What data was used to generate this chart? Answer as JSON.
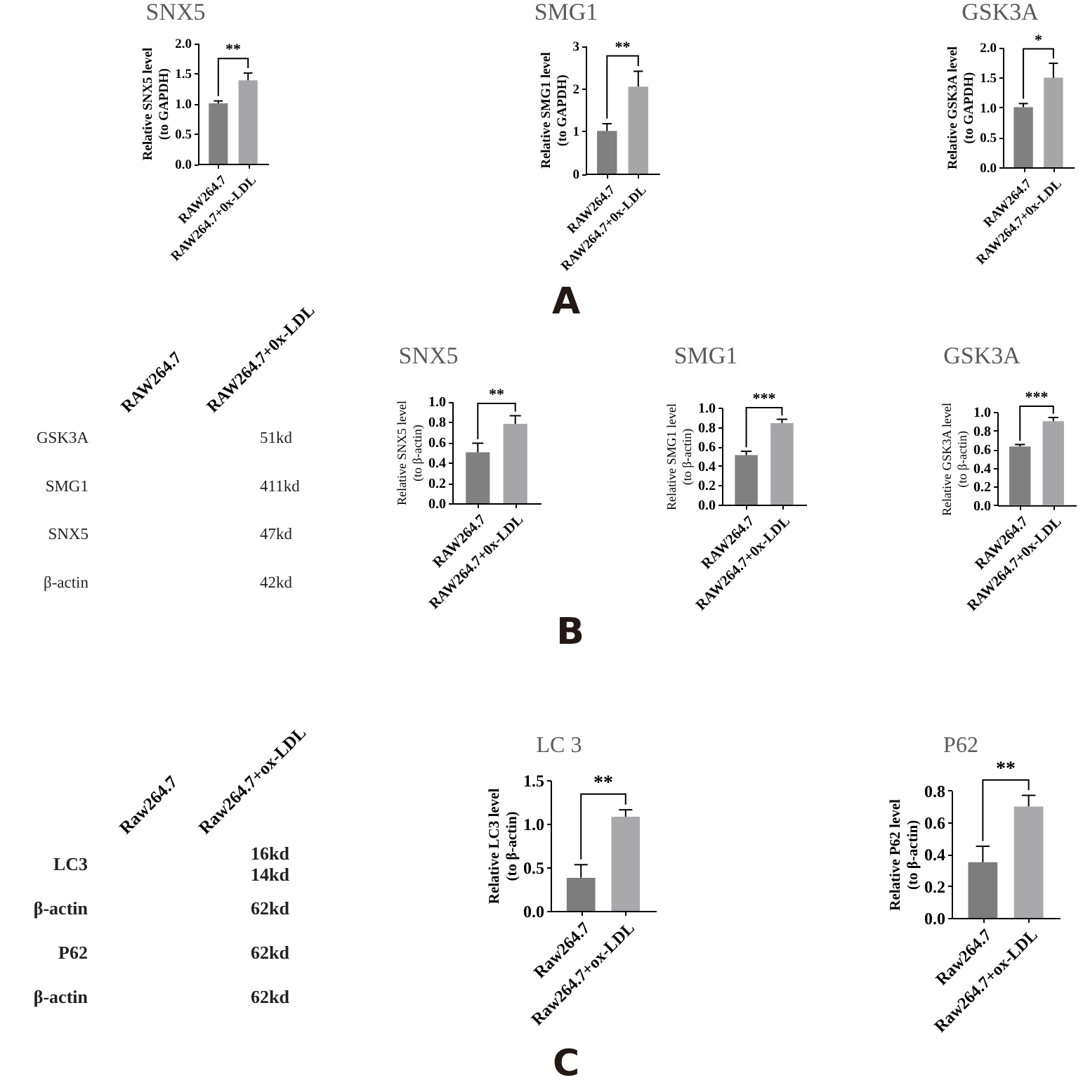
{
  "chart_data": [
    {
      "type": "bar",
      "title": "SNX5",
      "ylabel": "Relative SNX5 level\n(to GAPDH)",
      "categories": [
        "RAW264.7",
        "RAW264.7+0x-LDL"
      ],
      "values": [
        1.0,
        1.38
      ],
      "errors": [
        [
          1.0,
          1.04
        ],
        [
          1.38,
          1.5
        ]
      ],
      "colors": [
        "#808080",
        "#a6a6a9"
      ],
      "ylim": [
        0,
        2
      ],
      "yticks": [
        {
          "value": 0,
          "label": "0.0"
        },
        0.5,
        {
          "value": 1,
          "label": "1.0"
        },
        1.5,
        {
          "value": 2,
          "label": "2.0"
        }
      ],
      "annotations": [
        "**"
      ]
    },
    {
      "type": "bar",
      "title": "SMG1",
      "ylabel": "Relative SMG1 level\n(to GAPDH)",
      "categories": [
        "RAW264.7",
        "RAW264.7+0x-LDL"
      ],
      "values": [
        1.0,
        2.04
      ],
      "errors": [
        [
          1.0,
          1.17
        ],
        [
          2.04,
          2.4
        ]
      ],
      "colors": [
        "#808080",
        "#a6a6a9"
      ],
      "ylim": [
        0,
        3
      ],
      "yticks": [
        0,
        1,
        2,
        3
      ],
      "annotations": [
        "**"
      ]
    },
    {
      "type": "bar",
      "title": "GSK3A",
      "ylabel": "Relative GSK3A level\n(to GAPDH)",
      "categories": [
        "RAW264.7",
        "RAW264.7+0x-LDL"
      ],
      "values": [
        1.0,
        1.49
      ],
      "errors": [
        [
          1.0,
          1.06
        ],
        [
          1.49,
          1.73
        ]
      ],
      "colors": [
        "#808080",
        "#a6a6a9"
      ],
      "ylim": [
        0,
        2
      ],
      "yticks": [
        {
          "value": 0,
          "label": "0.0"
        },
        0.5,
        {
          "value": 1,
          "label": "1.0"
        },
        1.5,
        {
          "value": 2,
          "label": "2.0"
        }
      ],
      "annotations": [
        "*"
      ]
    },
    {
      "type": "other",
      "annotations": [
        "A"
      ]
    },
    {
      "type": "other",
      "categories": [
        "RAW264.7",
        "RAW264.7+0x-LDL"
      ],
      "y_categories": [
        "GSK3A",
        "SMG1",
        "SNX5",
        "β-actin"
      ],
      "y2_categories": [
        "51kd",
        "411kd",
        "47kd",
        "42kd"
      ]
    },
    {
      "type": "bar",
      "title": "SNX5",
      "ylabel": "Relative SNX5 level\n(to β-actin)",
      "categories": [
        "RAW264.7",
        "RAW264.7+0x-LDL"
      ],
      "values": [
        0.5,
        0.78
      ],
      "errors": [
        [
          0.5,
          0.59
        ],
        [
          0.78,
          0.86
        ]
      ],
      "colors": [
        "#808080",
        "#a6a6a9"
      ],
      "ylim": [
        0,
        1
      ],
      "yticks": [
        {
          "value": 0,
          "label": "0.0"
        },
        0.2,
        0.4,
        0.6,
        0.8,
        {
          "value": 1,
          "label": "1.0"
        }
      ],
      "annotations": [
        "**"
      ]
    },
    {
      "type": "bar",
      "title": "SMG1",
      "ylabel": "Relative SMG1 level\n(to β-actin)",
      "categories": [
        "RAW264.7",
        "RAW264.7+0x-LDL"
      ],
      "values": [
        0.51,
        0.84
      ],
      "errors": [
        [
          0.51,
          0.55
        ],
        [
          0.84,
          0.88
        ]
      ],
      "colors": [
        "#808080",
        "#a6a6a9"
      ],
      "ylim": [
        0,
        1
      ],
      "yticks": [
        {
          "value": 0,
          "label": "0.0"
        },
        0.2,
        0.4,
        0.6,
        0.8,
        {
          "value": 1,
          "label": "1.0"
        }
      ],
      "annotations": [
        "***"
      ]
    },
    {
      "type": "bar",
      "title": "GSK3A",
      "ylabel": "Relative GSK3A level\n(to β-actin)",
      "categories": [
        "RAW264.7",
        "RAW264.7+0x-LDL"
      ],
      "values": [
        0.63,
        0.9
      ],
      "errors": [
        [
          0.63,
          0.65
        ],
        [
          0.9,
          0.94
        ]
      ],
      "colors": [
        "#808080",
        "#a6a6a9"
      ],
      "ylim": [
        0,
        1
      ],
      "yticks": [
        {
          "value": 0,
          "label": "0.0"
        },
        0.2,
        0.4,
        0.6,
        0.8,
        {
          "value": 1,
          "label": "1.0"
        }
      ],
      "annotations": [
        "***"
      ]
    },
    {
      "type": "other",
      "annotations": [
        "B"
      ]
    },
    {
      "type": "other",
      "categories": [
        "Raw264.7",
        "Raw264.7+ox-LDL"
      ],
      "y_categories": [
        "LC3",
        null,
        "β-actin",
        "P62",
        "β-actin"
      ],
      "y2_categories": [
        "16kd",
        "14kd",
        "62kd",
        "62kd",
        "62kd"
      ]
    },
    {
      "type": "bar",
      "title": "LC 3",
      "ylabel": "Relative LC3 level\n(to β-actin)",
      "categories": [
        "Raw264.7",
        "Raw264.7+ox-LDL"
      ],
      "values": [
        0.38,
        1.08
      ],
      "errors": [
        [
          0.38,
          0.53
        ],
        [
          1.08,
          1.16
        ]
      ],
      "colors": [
        "#7c7c7c",
        "#a9a9ab"
      ],
      "ylim": [
        0,
        1.5
      ],
      "yticks": [
        {
          "value": 0,
          "label": "0.0"
        },
        0.5,
        {
          "value": 1,
          "label": "1.0"
        },
        1.5
      ],
      "annotations": [
        "**"
      ]
    },
    {
      "type": "bar",
      "title": "P62",
      "ylabel": "Relative P62 level\n(to β-actin)",
      "categories": [
        "Raw264.7",
        "Raw264.7+ox-LDL"
      ],
      "values": [
        0.35,
        0.7
      ],
      "errors": [
        [
          0.35,
          0.45
        ],
        [
          0.7,
          0.77
        ]
      ],
      "colors": [
        "#7c7c7c",
        "#a9a9ab"
      ],
      "ylim": [
        0,
        0.8
      ],
      "yticks": [
        {
          "value": 0,
          "label": "0.0"
        },
        0.2,
        0.4,
        0.6,
        0.8
      ],
      "annotations": [
        "**"
      ]
    },
    {
      "type": "other",
      "annotations": [
        "C"
      ]
    }
  ]
}
